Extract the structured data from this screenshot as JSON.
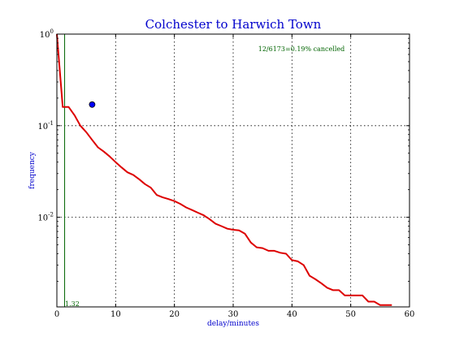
{
  "chart_data": {
    "type": "line",
    "title": "Colchester to Harwich Town",
    "xlabel": "delay/minutes",
    "ylabel": "frequency",
    "xlim": [
      0,
      60
    ],
    "ylim": [
      0.00105,
      1
    ],
    "yscale": "log",
    "grid": true,
    "x_ticks": [
      0,
      10,
      20,
      30,
      40,
      50,
      60
    ],
    "x_tick_labels": [
      "0",
      "10",
      "20",
      "30",
      "40",
      "50",
      "60"
    ],
    "y_ticks": [
      1,
      0.1,
      0.01
    ],
    "y_tick_labels": [
      {
        "base": "10",
        "exp": "0"
      },
      {
        "base": "10",
        "exp": "-1"
      },
      {
        "base": "10",
        "exp": "-2"
      }
    ],
    "annotation": "12/6173=0.19% cancelled",
    "vline": {
      "x": 1.32,
      "label": "1.32",
      "color": "#006400"
    },
    "marker": {
      "x": 6,
      "y": 0.17,
      "color": "#0000ff"
    },
    "series": [
      {
        "color": "#dd0000",
        "points": [
          [
            0,
            1.0
          ],
          [
            1,
            0.16
          ],
          [
            2,
            0.16
          ],
          [
            3,
            0.13
          ],
          [
            4,
            0.1
          ],
          [
            5,
            0.085
          ],
          [
            6,
            0.07
          ],
          [
            7,
            0.058
          ],
          [
            8,
            0.052
          ],
          [
            9,
            0.046
          ],
          [
            10,
            0.04
          ],
          [
            11,
            0.035
          ],
          [
            12,
            0.031
          ],
          [
            13,
            0.029
          ],
          [
            14,
            0.026
          ],
          [
            15,
            0.023
          ],
          [
            16,
            0.021
          ],
          [
            17,
            0.0175
          ],
          [
            18,
            0.0165
          ],
          [
            19,
            0.0158
          ],
          [
            20,
            0.015
          ],
          [
            21,
            0.014
          ],
          [
            22,
            0.0128
          ],
          [
            23,
            0.012
          ],
          [
            24,
            0.0112
          ],
          [
            25,
            0.0105
          ],
          [
            26,
            0.0095
          ],
          [
            27,
            0.0085
          ],
          [
            28,
            0.008
          ],
          [
            29,
            0.0075
          ],
          [
            30,
            0.0073
          ],
          [
            31,
            0.0072
          ],
          [
            32,
            0.0066
          ],
          [
            33,
            0.0053
          ],
          [
            34,
            0.0047
          ],
          [
            35,
            0.0046
          ],
          [
            36,
            0.0043
          ],
          [
            37,
            0.0043
          ],
          [
            38,
            0.0041
          ],
          [
            39,
            0.004
          ],
          [
            40,
            0.0034
          ],
          [
            41,
            0.0033
          ],
          [
            42,
            0.003
          ],
          [
            43,
            0.0023
          ],
          [
            44,
            0.0021
          ],
          [
            45,
            0.0019
          ],
          [
            46,
            0.0017
          ],
          [
            47,
            0.0016
          ],
          [
            48,
            0.0016
          ],
          [
            49,
            0.0014
          ],
          [
            50,
            0.0014
          ],
          [
            51,
            0.0014
          ],
          [
            52,
            0.0014
          ],
          [
            53,
            0.0012
          ],
          [
            54,
            0.0012
          ],
          [
            55,
            0.0011
          ],
          [
            56,
            0.0011
          ],
          [
            57,
            0.0011
          ]
        ]
      }
    ]
  }
}
